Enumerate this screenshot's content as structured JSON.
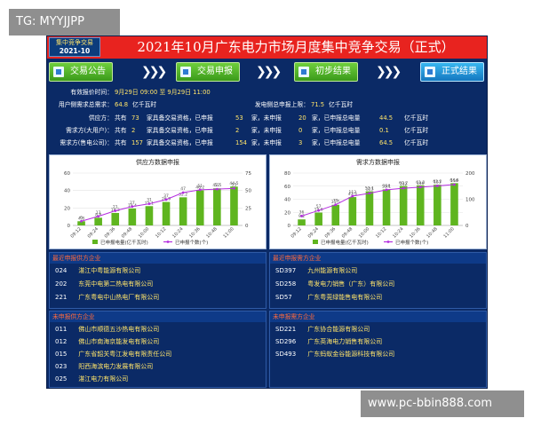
{
  "watermark_top": "TG: MYYJJPP",
  "watermark_bottom": "www.pc-bbin888.com",
  "header": {
    "badge_line1": "集中竞争交易",
    "badge_line2": "2021-10",
    "title": "2021年10月广东电力市场月度集中竞争交易（正式）"
  },
  "steps": [
    {
      "label": "交易公告"
    },
    {
      "label": "交易申报"
    },
    {
      "label": "初步结果"
    },
    {
      "label": "正式结果"
    }
  ],
  "chevrons": "❯❯❯",
  "info": {
    "period_label": "有效报价时间：",
    "period_value": "9月29日 09:00 至 9月29日 11:00",
    "user_demand_label": "用户侧需求总需求：",
    "user_demand_value": "64.8",
    "user_demand_unit": "亿千瓦时",
    "gen_total_label": "发电侧总申报上限：",
    "gen_total_value": "71.5",
    "gen_total_unit": "亿千瓦时",
    "rows": [
      {
        "label": "供应方：",
        "prefix": "共有",
        "total": "73",
        "mid": "家具备交易资格，已申报",
        "declared": "53",
        "mid2": "家，未申报",
        "undeclared": "20",
        "mid3": "家，已申报总电量",
        "energy": "44.5",
        "unit": "亿千瓦时"
      },
      {
        "label": "需求方(大用户)：",
        "prefix": "共有",
        "total": "2",
        "mid": "家具备交易资格，已申报",
        "declared": "2",
        "mid2": "家，未申报",
        "undeclared": "0",
        "mid3": "家，已申报总电量",
        "energy": "0.1",
        "unit": "亿千瓦时"
      },
      {
        "label": "需求方(售电公司)：",
        "prefix": "共有",
        "total": "157",
        "mid": "家具备交易资格，已申报",
        "declared": "154",
        "mid2": "家，未申报",
        "undeclared": "3",
        "mid3": "家，已申报总电量",
        "energy": "64.5",
        "unit": "亿千瓦时"
      }
    ]
  },
  "chart_data": [
    {
      "type": "bar",
      "title": "供应方数据申报",
      "categories": [
        "09:12",
        "09:24",
        "09:36",
        "09:48",
        "10:00",
        "10:12",
        "10:24",
        "10:36",
        "10:48",
        "11:00"
      ],
      "series": [
        {
          "name": "已申报电量(亿千瓦时)",
          "kind": "bar",
          "axis": "left",
          "values": [
            4.8,
            8.8,
            14.3,
            19.4,
            22.1,
            26.9,
            32.2,
            40.2,
            42.5,
            44.5
          ]
        },
        {
          "name": "已申报个数(个)",
          "kind": "line",
          "axis": "right",
          "values": [
            6,
            13,
            21,
            27,
            31,
            37,
            47,
            51,
            52,
            53
          ]
        }
      ],
      "ylim_left": [
        0,
        60
      ],
      "yticks_left": [
        0,
        20,
        40,
        60
      ],
      "ylim_right": [
        0,
        75
      ],
      "yticks_right": [
        0,
        25,
        50,
        75
      ],
      "colors": {
        "bar": "#5fb51f",
        "line": "#b52ee0"
      }
    },
    {
      "type": "bar",
      "title": "需求方数据申报",
      "categories": [
        "09:12",
        "09:24",
        "09:36",
        "09:48",
        "10:00",
        "10:12",
        "10:24",
        "10:36",
        "10:48",
        "11:00"
      ],
      "series": [
        {
          "name": "已申报电量(亿千瓦时)",
          "kind": "bar",
          "axis": "left",
          "values": [
            9.2,
            19.6,
            31.5,
            43.3,
            52.1,
            55.1,
            60.2,
            61.3,
            62.2,
            64.6
          ]
        },
        {
          "name": "已申报个数(个)",
          "kind": "line",
          "axis": "right",
          "values": [
            36,
            57,
            79,
            112,
            123,
            136,
            142,
            146,
            151,
            156
          ]
        }
      ],
      "ylim_left": [
        0,
        80
      ],
      "yticks_left": [
        0,
        20,
        40,
        60,
        80
      ],
      "ylim_right": [
        0,
        200
      ],
      "yticks_right": [
        0,
        100,
        200
      ],
      "colors": {
        "bar": "#5fb51f",
        "line": "#b52ee0"
      }
    }
  ],
  "lists": {
    "recent_supply": {
      "title": "最近申报供方企业",
      "items": [
        {
          "code": "024",
          "name": "湛江中粤能源有限公司"
        },
        {
          "code": "202",
          "name": "东莞中电第二热电有限公司"
        },
        {
          "code": "221",
          "name": "广东粤电中山热电厂有限公司"
        }
      ]
    },
    "recent_demand": {
      "title": "最近申报需方企业",
      "items": [
        {
          "code": "SD397",
          "name": "九州能源有限公司"
        },
        {
          "code": "SD258",
          "name": "粤发电力销售（广东）有限公司"
        },
        {
          "code": "SD57",
          "name": "广东粤莞绿能售电有限公司"
        }
      ]
    },
    "undeclared_supply": {
      "title": "未申报供方企业",
      "items": [
        {
          "code": "011",
          "name": "佛山市顺德五沙热电有限公司"
        },
        {
          "code": "012",
          "name": "佛山市南海京能发电有限公司"
        },
        {
          "code": "015",
          "name": "广东省韶关粤江发电有限责任公司"
        },
        {
          "code": "023",
          "name": "阳西海滨电力发展有限公司"
        },
        {
          "code": "025",
          "name": "湛江电力有限公司"
        }
      ]
    },
    "undeclared_demand": {
      "title": "未申报需方企业",
      "items": [
        {
          "code": "SD221",
          "name": "广东协合能源有限公司"
        },
        {
          "code": "SD296",
          "name": "广东英海电力销售有限公司"
        },
        {
          "code": "SD493",
          "name": "广东蚂蚁金谷能源科技有限公司"
        }
      ]
    }
  }
}
